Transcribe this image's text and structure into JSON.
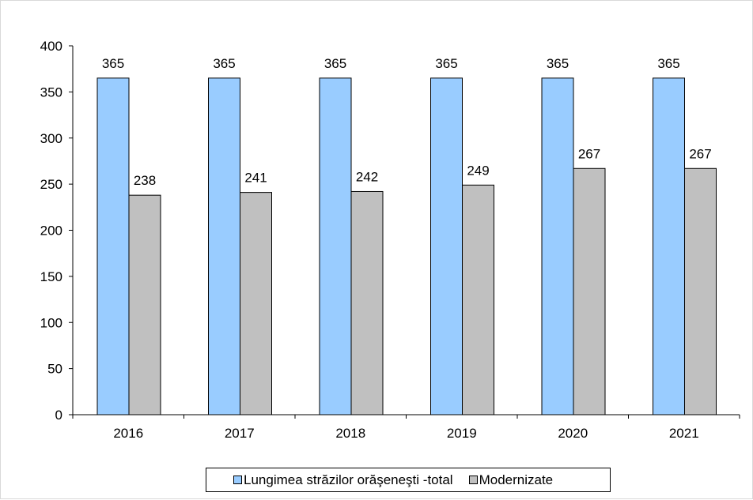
{
  "chart_data": {
    "type": "bar",
    "title": "",
    "xlabel": "",
    "ylabel": "",
    "categories": [
      "2016",
      "2017",
      "2018",
      "2019",
      "2020",
      "2021"
    ],
    "series": [
      {
        "name": "Lungimea străzilor orăşeneşti  -total",
        "values": [
          365,
          365,
          365,
          365,
          365,
          365
        ],
        "color": "#99ccff"
      },
      {
        "name": "Modernizate",
        "values": [
          238,
          241,
          242,
          249,
          267,
          267
        ],
        "color": "#c0c0c0"
      }
    ],
    "ylim": [
      0,
      400
    ],
    "yticks": [
      0,
      50,
      100,
      150,
      200,
      250,
      300,
      350,
      400
    ],
    "data_labels": true,
    "grid": false,
    "legend": "bottom"
  }
}
